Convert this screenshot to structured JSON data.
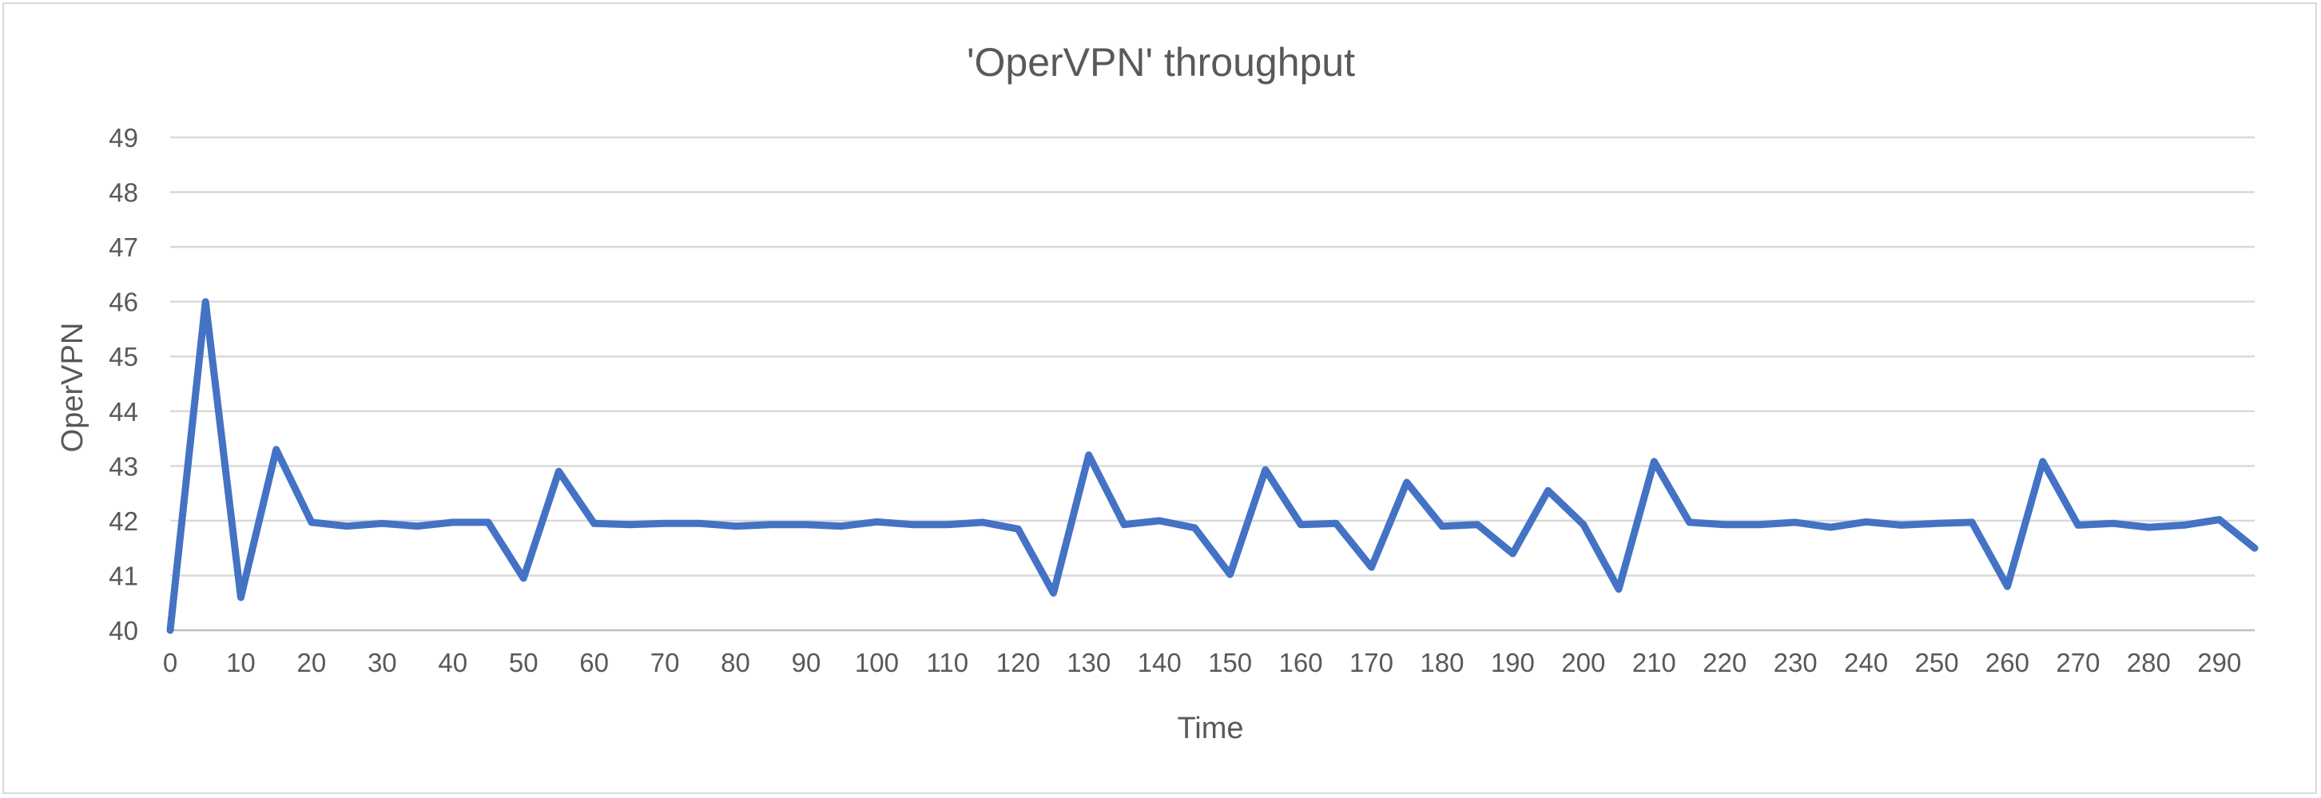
{
  "chart_data": {
    "type": "line",
    "title": "'OperVPN'  throughput",
    "xlabel": "Time",
    "ylabel": "OperVPN",
    "ylim": [
      40,
      49
    ],
    "xlim": [
      0,
      295
    ],
    "y_ticks": [
      40,
      41,
      42,
      43,
      44,
      45,
      46,
      47,
      48,
      49
    ],
    "x_ticks": [
      0,
      10,
      20,
      30,
      40,
      50,
      60,
      70,
      80,
      90,
      100,
      110,
      120,
      130,
      140,
      150,
      160,
      170,
      180,
      190,
      200,
      210,
      220,
      230,
      240,
      250,
      260,
      270,
      280,
      290
    ],
    "grid": true,
    "legend": "none",
    "series": [
      {
        "color": "#4472c4",
        "x": [
          0,
          0.5,
          5,
          10,
          15,
          20,
          25,
          30,
          35,
          40,
          45,
          50,
          55,
          60,
          65,
          70,
          75,
          80,
          85,
          90,
          95,
          100,
          105,
          110,
          115,
          120,
          125,
          130,
          135,
          140,
          145,
          150,
          155,
          160,
          165,
          170,
          175,
          180,
          185,
          190,
          195,
          200,
          205,
          210,
          215,
          220,
          225,
          230,
          235,
          240,
          245,
          250,
          255,
          260,
          265,
          270,
          275,
          280,
          285,
          290,
          295
        ],
        "y": [
          40,
          40.6,
          46,
          40.6,
          43.3,
          41.97,
          41.9,
          41.95,
          41.9,
          41.97,
          41.97,
          40.95,
          42.9,
          41.95,
          41.93,
          41.95,
          41.95,
          41.9,
          41.93,
          41.93,
          41.9,
          41.98,
          41.93,
          41.93,
          41.97,
          41.85,
          40.68,
          43.2,
          41.93,
          42.0,
          41.87,
          41.02,
          42.93,
          41.93,
          41.95,
          41.15,
          42.7,
          41.9,
          41.93,
          41.4,
          42.55,
          41.93,
          40.75,
          43.08,
          41.97,
          41.93,
          41.93,
          41.97,
          41.88,
          41.98,
          41.92,
          41.95,
          41.97,
          40.8,
          43.08,
          41.92,
          41.95,
          41.88,
          41.92,
          42.02,
          41.5
        ]
      }
    ]
  }
}
